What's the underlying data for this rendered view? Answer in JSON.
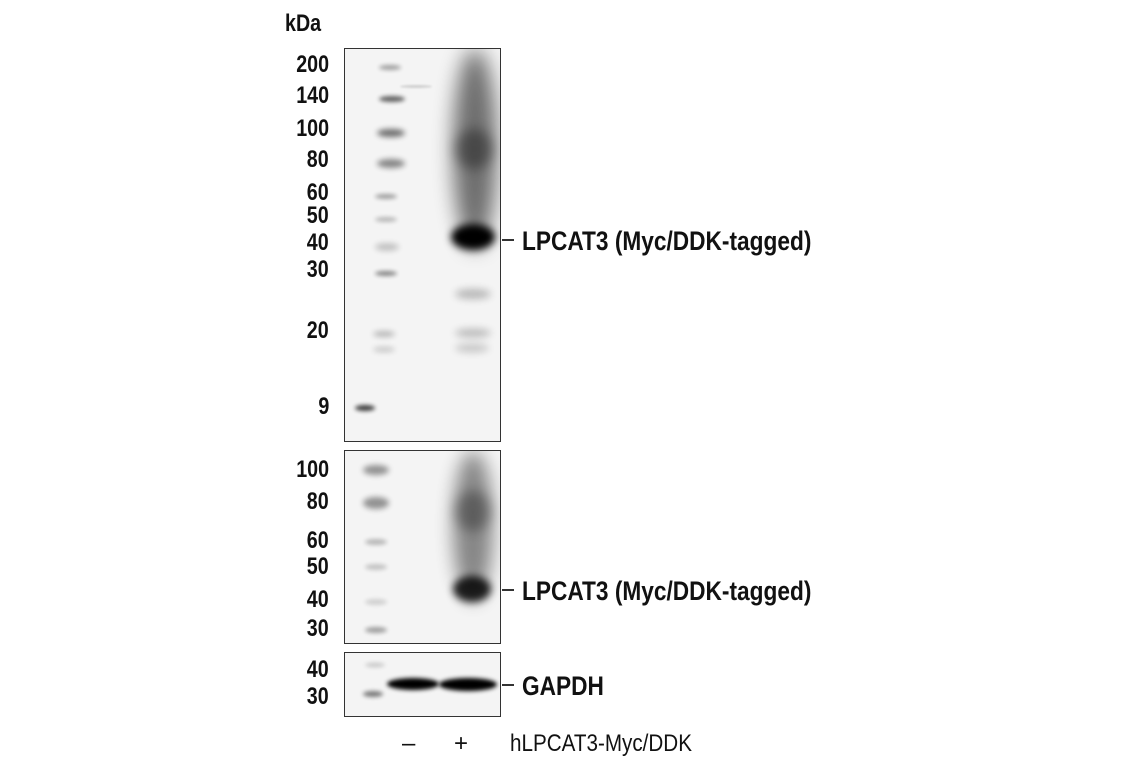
{
  "unit_label": "kDa",
  "panels": [
    {
      "name": "lpcat3-long",
      "markers": [
        "200",
        "140",
        "100",
        "80",
        "60",
        "50",
        "40",
        "30",
        "20",
        "9"
      ],
      "annotation": "LPCAT3 (Myc/DDK-tagged)"
    },
    {
      "name": "lpcat3-short",
      "markers": [
        "100",
        "80",
        "60",
        "50",
        "40",
        "30"
      ],
      "annotation": "LPCAT3 (Myc/DDK-tagged)"
    },
    {
      "name": "gapdh",
      "markers": [
        "40",
        "30"
      ],
      "annotation": "GAPDH"
    }
  ],
  "lanes": {
    "signs": [
      "–",
      "+"
    ],
    "treatment_label": "hLPCAT3-Myc/DDK"
  }
}
